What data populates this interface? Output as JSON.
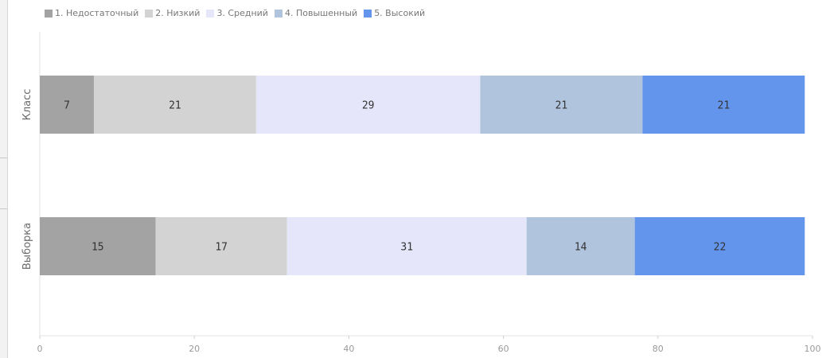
{
  "chart_data": {
    "type": "bar",
    "orientation": "horizontal",
    "stacked": true,
    "categories": [
      "Класс",
      "Выборка"
    ],
    "series": [
      {
        "name": "1. Недостаточный",
        "color": "#a3a3a3",
        "values": [
          7,
          15
        ]
      },
      {
        "name": "2. Низкий",
        "color": "#d3d3d3",
        "values": [
          21,
          17
        ]
      },
      {
        "name": "3. Средний",
        "color": "#e6e6fa",
        "values": [
          29,
          31
        ]
      },
      {
        "name": "4. Повышенный",
        "color": "#b0c4de",
        "values": [
          21,
          14
        ]
      },
      {
        "name": "5. Высокий",
        "color": "#6495ed",
        "values": [
          21,
          22
        ]
      }
    ],
    "xlim": [
      0,
      100
    ],
    "xticks": [
      0,
      20,
      40,
      60,
      80,
      100
    ],
    "legend_position": "top-left",
    "grid": false
  }
}
